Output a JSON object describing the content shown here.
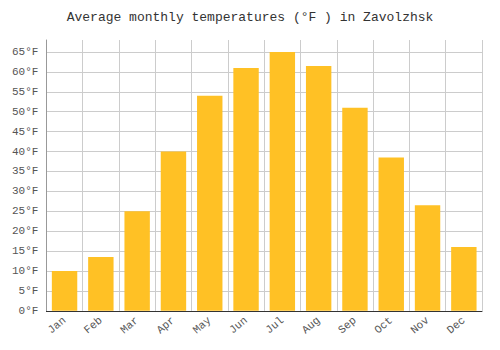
{
  "chart_data": {
    "type": "bar",
    "title": "Average monthly temperatures (°F ) in Zavolzhsk",
    "categories": [
      "Jan",
      "Feb",
      "Mar",
      "Apr",
      "May",
      "Jun",
      "Jul",
      "Aug",
      "Sep",
      "Oct",
      "Nov",
      "Dec"
    ],
    "values": [
      10,
      13.5,
      25,
      40,
      54,
      61,
      65,
      61.5,
      51,
      38.5,
      26.5,
      16
    ],
    "color": "#FFC125",
    "ylim": [
      0,
      68
    ],
    "yticks": [
      {
        "value": 0,
        "label": "0°F"
      },
      {
        "value": 5,
        "label": "5°F"
      },
      {
        "value": 10,
        "label": "10°F"
      },
      {
        "value": 15,
        "label": "15°F"
      },
      {
        "value": 20,
        "label": "20°F"
      },
      {
        "value": 25,
        "label": "25°F"
      },
      {
        "value": 30,
        "label": "30°F"
      },
      {
        "value": 35,
        "label": "35°F"
      },
      {
        "value": 40,
        "label": "40°F"
      },
      {
        "value": 45,
        "label": "45°F"
      },
      {
        "value": 50,
        "label": "50°F"
      },
      {
        "value": 55,
        "label": "55°F"
      },
      {
        "value": 60,
        "label": "60°F"
      },
      {
        "value": 65,
        "label": "65°F"
      }
    ],
    "grid": true
  }
}
